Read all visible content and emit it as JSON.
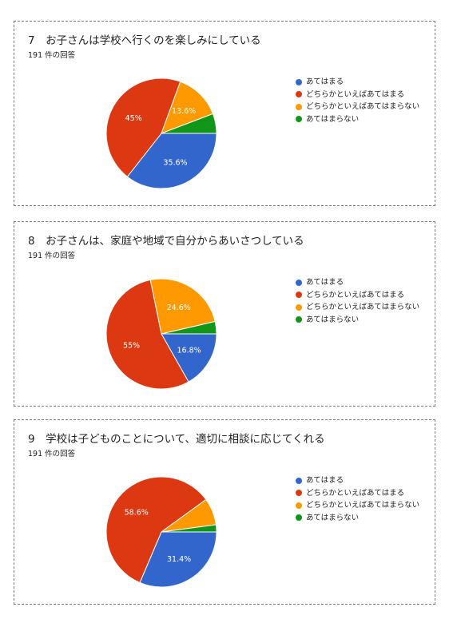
{
  "colors": {
    "blue": "#3366cc",
    "red": "#dc3912",
    "orange": "#ff9900",
    "green": "#109618"
  },
  "legend_labels": [
    "あてはまる",
    "どちらかといえばあてはまる",
    "どちらかといえばあてはまらない",
    "あてはまらない"
  ],
  "chart_data": [
    {
      "type": "pie",
      "title": "7　お子さんは学校へ行くのを楽しみにしている",
      "subtitle": "191 件の回答",
      "categories": [
        "あてはまる",
        "どちらかといえばあてはまる",
        "どちらかといえばあてはまらない",
        "あてはまらない"
      ],
      "values": [
        35.6,
        45,
        13.6,
        5.8
      ],
      "value_labels": [
        "35.6%",
        "45%",
        "13.6%",
        ""
      ],
      "legend_position": "right"
    },
    {
      "type": "pie",
      "title": "8　お子さんは、家庭や地域で自分からあいさつしている",
      "subtitle": "191 件の回答",
      "categories": [
        "あてはまる",
        "どちらかといえばあてはまる",
        "どちらかといえばあてはまらない",
        "あてはまらない"
      ],
      "values": [
        16.8,
        55,
        24.6,
        3.6
      ],
      "value_labels": [
        "16.8%",
        "55%",
        "24.6%",
        ""
      ],
      "legend_position": "right"
    },
    {
      "type": "pie",
      "title": "9　学校は子どものことについて、適切に相談に応じてくれる",
      "subtitle": "191 件の回答",
      "categories": [
        "あてはまる",
        "どちらかといえばあてはまる",
        "どちらかといえばあてはまらない",
        "あてはまらない"
      ],
      "values": [
        31.4,
        58.6,
        7.9,
        2.1
      ],
      "value_labels": [
        "31.4%",
        "58.6%",
        "",
        ""
      ],
      "legend_position": "right"
    }
  ]
}
